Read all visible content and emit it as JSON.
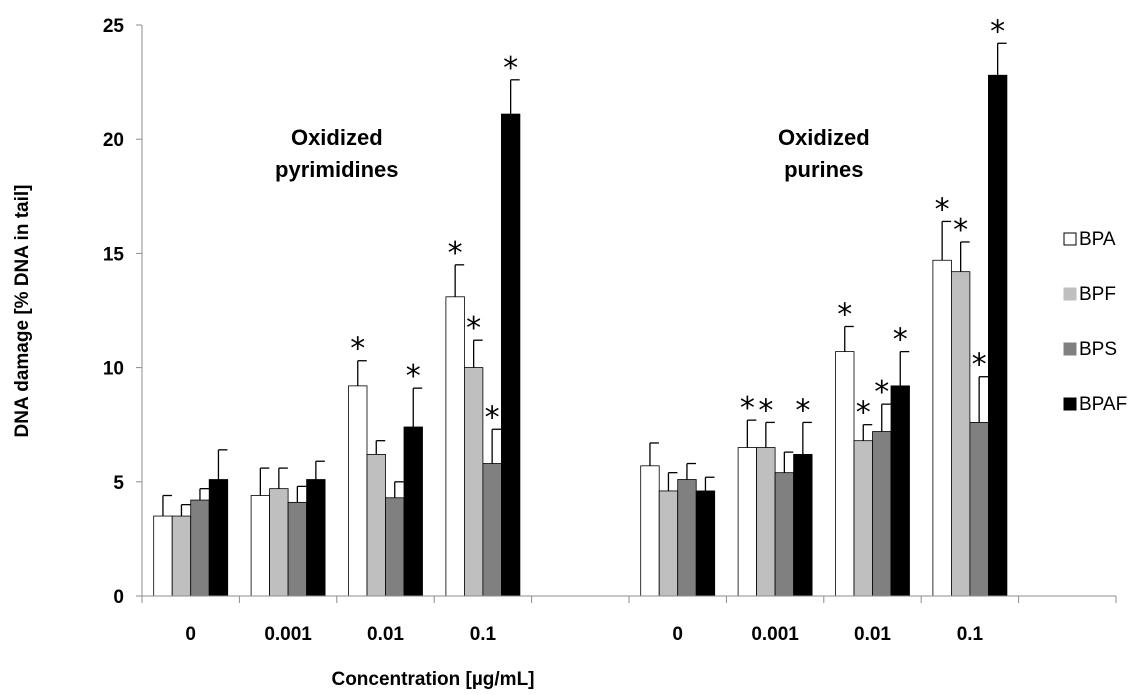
{
  "chart_data": {
    "type": "bar",
    "title": "",
    "xlabel": "Concentration [µg/mL]",
    "ylabel": "DNA damage [% DNA in tail]",
    "ylim": [
      0,
      25
    ],
    "yticks": [
      "0",
      "5",
      "10",
      "15",
      "20",
      "25"
    ],
    "legend_position": "right",
    "groups": [
      {
        "label": "Oxidized pyrimidines",
        "label_lines": [
          "Oxidized",
          "pyrimidines"
        ]
      },
      {
        "label": "Oxidized purines",
        "label_lines": [
          "Oxidized",
          "purines"
        ]
      }
    ],
    "categories": [
      "0",
      "0.001",
      "0.01",
      "0.1",
      "0",
      "0.001",
      "0.01",
      "0.1"
    ],
    "series": [
      {
        "name": "BPA",
        "color": "#ffffff",
        "values": [
          3.5,
          4.4,
          9.2,
          13.1,
          5.7,
          6.5,
          10.7,
          14.7
        ],
        "errors": [
          0.9,
          1.2,
          1.1,
          1.4,
          1.0,
          1.2,
          1.1,
          1.7
        ],
        "significant": [
          false,
          false,
          true,
          true,
          false,
          true,
          true,
          true
        ]
      },
      {
        "name": "BPF",
        "color": "#bfbfbf",
        "values": [
          3.5,
          4.7,
          6.2,
          10.0,
          4.6,
          6.5,
          6.8,
          14.2
        ],
        "errors": [
          0.5,
          0.9,
          0.6,
          1.2,
          0.8,
          1.1,
          0.7,
          1.3
        ],
        "significant": [
          false,
          false,
          false,
          true,
          false,
          true,
          true,
          true
        ]
      },
      {
        "name": "BPS",
        "color": "#808080",
        "values": [
          4.2,
          4.1,
          4.3,
          5.8,
          5.1,
          5.4,
          7.2,
          7.6
        ],
        "errors": [
          0.5,
          0.7,
          0.7,
          1.5,
          0.7,
          0.9,
          1.2,
          2.0
        ],
        "significant": [
          false,
          false,
          false,
          true,
          false,
          false,
          true,
          true
        ]
      },
      {
        "name": "BPAF",
        "color": "#000000",
        "values": [
          5.1,
          5.1,
          7.4,
          21.1,
          4.6,
          6.2,
          9.2,
          22.8
        ],
        "errors": [
          1.3,
          0.8,
          1.7,
          1.5,
          0.6,
          1.4,
          1.5,
          1.4
        ],
        "significant": [
          false,
          false,
          true,
          true,
          false,
          true,
          true,
          true
        ]
      }
    ],
    "significance_marker": "*"
  }
}
